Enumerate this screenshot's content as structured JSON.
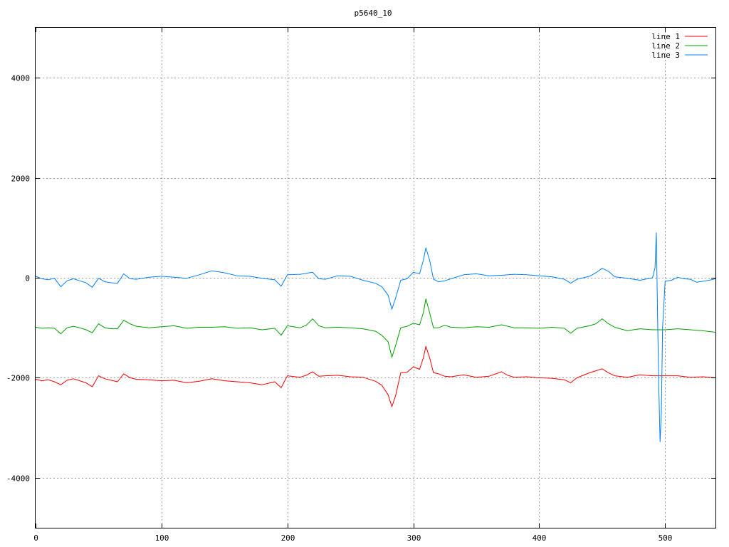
{
  "chart_data": {
    "type": "line",
    "title": "p5640_10",
    "xlabel": "",
    "ylabel": "",
    "xlim": [
      0,
      540
    ],
    "ylim": [
      -5000,
      5000
    ],
    "x_ticks": [
      0,
      100,
      200,
      300,
      400,
      500
    ],
    "y_ticks": [
      -4000,
      -2000,
      0,
      2000,
      4000
    ],
    "x_tick_labels": [
      "0",
      "100",
      "200",
      "300",
      "400",
      "500"
    ],
    "y_tick_labels": [
      "-4000",
      "-2000",
      "0",
      "2000",
      "4000"
    ],
    "grid": true,
    "legend_position": "top-right",
    "series": [
      {
        "name": "line 1",
        "color": "#ff0000",
        "points": [
          [
            0,
            -2030
          ],
          [
            5,
            -2060
          ],
          [
            10,
            -2040
          ],
          [
            15,
            -2080
          ],
          [
            20,
            -2140
          ],
          [
            25,
            -2050
          ],
          [
            30,
            -2020
          ],
          [
            35,
            -2060
          ],
          [
            40,
            -2100
          ],
          [
            45,
            -2180
          ],
          [
            50,
            -1960
          ],
          [
            55,
            -2020
          ],
          [
            60,
            -2050
          ],
          [
            65,
            -2080
          ],
          [
            70,
            -1920
          ],
          [
            75,
            -2000
          ],
          [
            80,
            -2030
          ],
          [
            90,
            -2040
          ],
          [
            100,
            -2060
          ],
          [
            110,
            -2050
          ],
          [
            120,
            -2100
          ],
          [
            130,
            -2070
          ],
          [
            140,
            -2020
          ],
          [
            150,
            -2060
          ],
          [
            160,
            -2080
          ],
          [
            170,
            -2100
          ],
          [
            180,
            -2140
          ],
          [
            190,
            -2080
          ],
          [
            195,
            -2200
          ],
          [
            200,
            -1960
          ],
          [
            210,
            -1990
          ],
          [
            215,
            -1950
          ],
          [
            220,
            -1880
          ],
          [
            225,
            -1970
          ],
          [
            230,
            -1960
          ],
          [
            240,
            -1950
          ],
          [
            250,
            -1980
          ],
          [
            260,
            -1990
          ],
          [
            270,
            -2070
          ],
          [
            275,
            -2150
          ],
          [
            280,
            -2340
          ],
          [
            283,
            -2580
          ],
          [
            286,
            -2350
          ],
          [
            290,
            -1900
          ],
          [
            295,
            -1890
          ],
          [
            300,
            -1780
          ],
          [
            305,
            -1830
          ],
          [
            308,
            -1600
          ],
          [
            310,
            -1370
          ],
          [
            313,
            -1600
          ],
          [
            316,
            -1900
          ],
          [
            320,
            -1920
          ],
          [
            325,
            -1970
          ],
          [
            330,
            -1980
          ],
          [
            340,
            -1940
          ],
          [
            350,
            -1990
          ],
          [
            360,
            -1970
          ],
          [
            370,
            -1880
          ],
          [
            375,
            -1950
          ],
          [
            380,
            -1990
          ],
          [
            390,
            -1980
          ],
          [
            400,
            -2000
          ],
          [
            410,
            -2010
          ],
          [
            420,
            -2040
          ],
          [
            425,
            -2100
          ],
          [
            430,
            -2000
          ],
          [
            440,
            -1900
          ],
          [
            445,
            -1860
          ],
          [
            450,
            -1820
          ],
          [
            455,
            -1900
          ],
          [
            460,
            -1960
          ],
          [
            470,
            -1990
          ],
          [
            480,
            -1940
          ],
          [
            490,
            -1960
          ],
          [
            500,
            -1960
          ],
          [
            510,
            -1960
          ],
          [
            520,
            -1990
          ],
          [
            530,
            -1980
          ],
          [
            540,
            -2000
          ]
        ]
      },
      {
        "name": "line 2",
        "color": "#00a000",
        "points": [
          [
            0,
            -990
          ],
          [
            5,
            -1010
          ],
          [
            10,
            -1000
          ],
          [
            15,
            -1010
          ],
          [
            20,
            -1120
          ],
          [
            25,
            -1000
          ],
          [
            30,
            -970
          ],
          [
            35,
            -1000
          ],
          [
            40,
            -1040
          ],
          [
            45,
            -1100
          ],
          [
            50,
            -920
          ],
          [
            55,
            -1000
          ],
          [
            60,
            -1020
          ],
          [
            65,
            -1020
          ],
          [
            70,
            -850
          ],
          [
            75,
            -920
          ],
          [
            80,
            -970
          ],
          [
            90,
            -1000
          ],
          [
            100,
            -980
          ],
          [
            110,
            -960
          ],
          [
            120,
            -1010
          ],
          [
            130,
            -990
          ],
          [
            140,
            -990
          ],
          [
            150,
            -980
          ],
          [
            160,
            -1010
          ],
          [
            170,
            -1000
          ],
          [
            180,
            -1040
          ],
          [
            190,
            -1010
          ],
          [
            195,
            -1150
          ],
          [
            200,
            -960
          ],
          [
            210,
            -1000
          ],
          [
            215,
            -950
          ],
          [
            220,
            -820
          ],
          [
            225,
            -960
          ],
          [
            230,
            -1000
          ],
          [
            240,
            -990
          ],
          [
            250,
            -1000
          ],
          [
            260,
            -1020
          ],
          [
            270,
            -1070
          ],
          [
            275,
            -1150
          ],
          [
            280,
            -1280
          ],
          [
            283,
            -1590
          ],
          [
            286,
            -1350
          ],
          [
            290,
            -1000
          ],
          [
            295,
            -970
          ],
          [
            300,
            -910
          ],
          [
            305,
            -940
          ],
          [
            308,
            -700
          ],
          [
            310,
            -420
          ],
          [
            313,
            -700
          ],
          [
            316,
            -1000
          ],
          [
            320,
            -1000
          ],
          [
            325,
            -950
          ],
          [
            330,
            -990
          ],
          [
            340,
            -1000
          ],
          [
            350,
            -980
          ],
          [
            360,
            -990
          ],
          [
            370,
            -940
          ],
          [
            380,
            -1000
          ],
          [
            390,
            -1000
          ],
          [
            400,
            -1010
          ],
          [
            410,
            -990
          ],
          [
            420,
            -1010
          ],
          [
            425,
            -1110
          ],
          [
            430,
            -1010
          ],
          [
            440,
            -960
          ],
          [
            445,
            -920
          ],
          [
            450,
            -820
          ],
          [
            455,
            -920
          ],
          [
            460,
            -990
          ],
          [
            470,
            -1060
          ],
          [
            480,
            -1020
          ],
          [
            490,
            -1040
          ],
          [
            500,
            -1040
          ],
          [
            510,
            -1020
          ],
          [
            520,
            -1040
          ],
          [
            530,
            -1060
          ],
          [
            540,
            -1090
          ]
        ]
      },
      {
        "name": "line 3",
        "color": "#0080ff",
        "points": [
          [
            0,
            30
          ],
          [
            5,
            -20
          ],
          [
            10,
            -40
          ],
          [
            15,
            -10
          ],
          [
            20,
            -180
          ],
          [
            25,
            -60
          ],
          [
            30,
            -20
          ],
          [
            35,
            -60
          ],
          [
            40,
            -100
          ],
          [
            45,
            -190
          ],
          [
            50,
            -10
          ],
          [
            55,
            -80
          ],
          [
            60,
            -100
          ],
          [
            65,
            -110
          ],
          [
            70,
            80
          ],
          [
            75,
            -20
          ],
          [
            80,
            -30
          ],
          [
            90,
            10
          ],
          [
            100,
            30
          ],
          [
            110,
            10
          ],
          [
            120,
            -10
          ],
          [
            130,
            60
          ],
          [
            140,
            140
          ],
          [
            150,
            100
          ],
          [
            160,
            40
          ],
          [
            170,
            30
          ],
          [
            180,
            -10
          ],
          [
            190,
            -40
          ],
          [
            195,
            -170
          ],
          [
            200,
            60
          ],
          [
            210,
            70
          ],
          [
            215,
            90
          ],
          [
            220,
            110
          ],
          [
            225,
            -20
          ],
          [
            230,
            -30
          ],
          [
            240,
            40
          ],
          [
            250,
            30
          ],
          [
            260,
            -50
          ],
          [
            270,
            -110
          ],
          [
            275,
            -180
          ],
          [
            280,
            -350
          ],
          [
            283,
            -630
          ],
          [
            286,
            -400
          ],
          [
            290,
            -50
          ],
          [
            295,
            -20
          ],
          [
            300,
            110
          ],
          [
            305,
            80
          ],
          [
            308,
            350
          ],
          [
            310,
            600
          ],
          [
            313,
            350
          ],
          [
            316,
            -30
          ],
          [
            320,
            -80
          ],
          [
            325,
            -60
          ],
          [
            330,
            -20
          ],
          [
            340,
            60
          ],
          [
            350,
            80
          ],
          [
            360,
            40
          ],
          [
            370,
            50
          ],
          [
            380,
            70
          ],
          [
            390,
            60
          ],
          [
            400,
            40
          ],
          [
            410,
            20
          ],
          [
            420,
            -30
          ],
          [
            425,
            -110
          ],
          [
            430,
            -30
          ],
          [
            440,
            30
          ],
          [
            445,
            100
          ],
          [
            450,
            190
          ],
          [
            455,
            130
          ],
          [
            460,
            20
          ],
          [
            470,
            -10
          ],
          [
            480,
            -50
          ],
          [
            490,
            0
          ],
          [
            492,
            200
          ],
          [
            493,
            900
          ],
          [
            494,
            -700
          ],
          [
            495,
            -2200
          ],
          [
            496,
            -3280
          ],
          [
            497,
            -2700
          ],
          [
            498,
            -1000
          ],
          [
            500,
            -70
          ],
          [
            505,
            -50
          ],
          [
            510,
            10
          ],
          [
            515,
            -20
          ],
          [
            520,
            -30
          ],
          [
            525,
            -90
          ],
          [
            530,
            -70
          ],
          [
            535,
            -50
          ],
          [
            540,
            -20
          ]
        ]
      }
    ]
  }
}
